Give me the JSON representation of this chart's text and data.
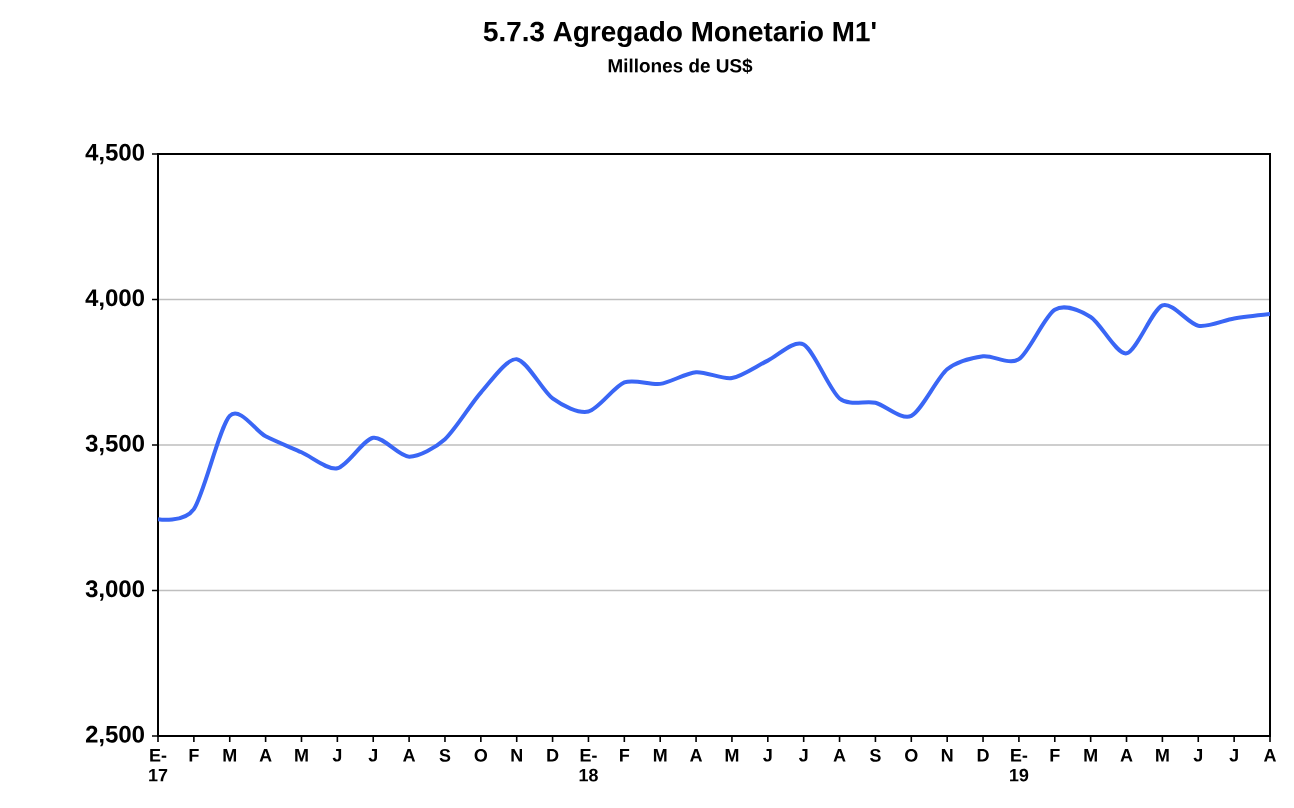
{
  "chart_data": {
    "type": "line",
    "title": "5.7.3 Agregado Monetario M1'",
    "subtitle": "Millones de US$",
    "categories": [
      "E-17",
      "F",
      "M",
      "A",
      "M",
      "J",
      "J",
      "A",
      "S",
      "O",
      "N",
      "D",
      "E-18",
      "F",
      "M",
      "A",
      "M",
      "J",
      "J",
      "A",
      "S",
      "O",
      "N",
      "D",
      "E-19",
      "F",
      "M",
      "A",
      "M",
      "J",
      "J",
      "A"
    ],
    "series": [
      {
        "color": "#3a66f5",
        "values": [
          3245,
          3280,
          3600,
          3530,
          3475,
          3420,
          3525,
          3460,
          3520,
          3680,
          3795,
          3660,
          3615,
          3715,
          3710,
          3750,
          3730,
          3790,
          3845,
          3660,
          3645,
          3600,
          3760,
          3805,
          3795,
          3965,
          3940,
          3815,
          3980,
          3910,
          3935,
          3950
        ]
      }
    ],
    "ylim": [
      2500,
      4500
    ],
    "yticks": [
      {
        "value": 2500,
        "label": "2,500"
      },
      {
        "value": 3000,
        "label": "3,000"
      },
      {
        "value": 3500,
        "label": "3,500"
      },
      {
        "value": 4000,
        "label": "4,000"
      },
      {
        "value": 4500,
        "label": "4,500"
      }
    ],
    "grid": "y",
    "marker": "none",
    "line_style": "solid"
  }
}
